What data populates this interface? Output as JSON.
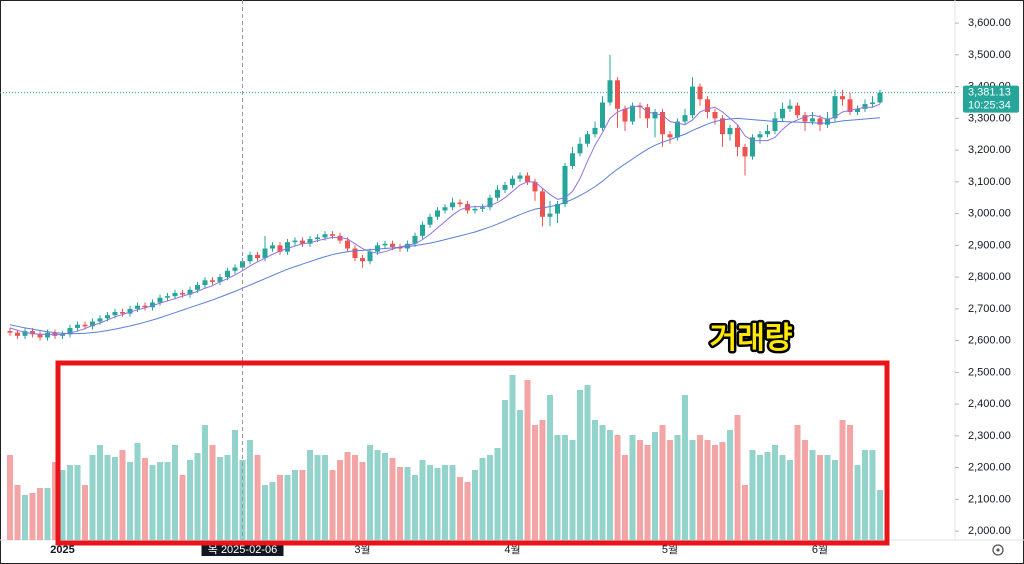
{
  "chart_data": {
    "type": "candlestick",
    "categories": [
      null,
      null,
      null,
      null,
      null,
      null,
      null,
      "2025",
      null,
      null,
      null,
      null,
      null,
      null,
      null,
      null,
      null,
      null,
      null,
      null,
      null,
      null,
      null,
      null,
      null,
      null,
      null,
      null,
      null,
      null,
      null,
      null,
      null,
      null,
      null,
      null,
      null,
      null,
      null,
      null,
      null,
      null,
      null,
      null,
      null,
      null,
      null,
      "3월",
      null,
      null,
      null,
      null,
      null,
      null,
      null,
      null,
      null,
      null,
      null,
      null,
      null,
      null,
      null,
      null,
      null,
      null,
      null,
      "4월",
      null,
      null,
      null,
      null,
      null,
      null,
      null,
      null,
      null,
      null,
      null,
      null,
      null,
      null,
      null,
      null,
      null,
      null,
      null,
      null,
      "5월",
      null,
      null,
      null,
      null,
      null,
      null,
      null,
      null,
      null,
      null,
      null,
      null,
      null,
      null,
      null,
      null,
      null,
      null,
      null,
      "6월",
      null,
      null,
      null,
      null,
      null,
      null,
      null,
      null
    ],
    "open": [
      2630,
      2625,
      2615,
      2630,
      2620,
      2610,
      2625,
      2615,
      2620,
      2640,
      2650,
      2645,
      2660,
      2670,
      2680,
      2690,
      2685,
      2700,
      2710,
      2705,
      2720,
      2735,
      2740,
      2750,
      2745,
      2760,
      2775,
      2790,
      2785,
      2800,
      2820,
      2830,
      2850,
      2870,
      2860,
      2890,
      2900,
      2880,
      2910,
      2915,
      2905,
      2920,
      2925,
      2935,
      2930,
      2915,
      2890,
      2860,
      2850,
      2880,
      2900,
      2905,
      2895,
      2890,
      2905,
      2930,
      2965,
      2990,
      3010,
      3020,
      3035,
      3030,
      3010,
      3015,
      3020,
      3050,
      3075,
      3090,
      3110,
      3120,
      3100,
      3070,
      2990,
      3000,
      3030,
      3150,
      3190,
      3220,
      3250,
      3270,
      3350,
      3420,
      3330,
      3290,
      3340,
      3335,
      3300,
      3320,
      3250,
      3240,
      3290,
      3310,
      3400,
      3360,
      3320,
      3300,
      3250,
      3270,
      3210,
      3180,
      3240,
      3250,
      3260,
      3300,
      3330,
      3340,
      3310,
      3290,
      3300,
      3280,
      3300,
      3370,
      3360,
      3320,
      3330,
      3345,
      3350
    ],
    "high": [
      2640,
      2635,
      2640,
      2640,
      2630,
      2635,
      2635,
      2630,
      2650,
      2660,
      2660,
      2670,
      2680,
      2690,
      2700,
      2700,
      2710,
      2720,
      2720,
      2730,
      2745,
      2750,
      2760,
      2760,
      2770,
      2785,
      2800,
      2800,
      2810,
      2830,
      2840,
      2860,
      2880,
      2880,
      2930,
      2910,
      2910,
      2920,
      2925,
      2925,
      2930,
      2935,
      2945,
      2945,
      2940,
      2925,
      2900,
      2870,
      2890,
      2910,
      2915,
      2915,
      2905,
      2915,
      2940,
      2975,
      3000,
      3020,
      3030,
      3050,
      3045,
      3040,
      3025,
      3030,
      3060,
      3090,
      3100,
      3120,
      3130,
      3130,
      3110,
      3080,
      3040,
      3040,
      3160,
      3210,
      3240,
      3260,
      3290,
      3370,
      3500,
      3430,
      3340,
      3350,
      3350,
      3345,
      3330,
      3330,
      3260,
      3300,
      3330,
      3430,
      3410,
      3370,
      3330,
      3310,
      3280,
      3280,
      3220,
      3250,
      3260,
      3280,
      3320,
      3350,
      3360,
      3350,
      3320,
      3320,
      3310,
      3320,
      3390,
      3390,
      3380,
      3340,
      3360,
      3370,
      3390
    ],
    "low": [
      2615,
      2605,
      2605,
      2610,
      2600,
      2600,
      2605,
      2605,
      2610,
      2630,
      2635,
      2635,
      2650,
      2660,
      2670,
      2675,
      2675,
      2690,
      2695,
      2695,
      2710,
      2725,
      2730,
      2735,
      2735,
      2750,
      2765,
      2775,
      2775,
      2790,
      2810,
      2820,
      2840,
      2850,
      2850,
      2880,
      2870,
      2870,
      2900,
      2895,
      2895,
      2910,
      2915,
      2920,
      2905,
      2880,
      2850,
      2830,
      2840,
      2870,
      2890,
      2885,
      2880,
      2880,
      2895,
      2920,
      2955,
      2980,
      3000,
      3010,
      3020,
      3000,
      3000,
      3005,
      3010,
      3040,
      3065,
      3080,
      3100,
      3090,
      3040,
      2960,
      2960,
      2970,
      3020,
      3140,
      3180,
      3210,
      3240,
      3260,
      3340,
      3270,
      3260,
      3280,
      3300,
      3270,
      3240,
      3210,
      3220,
      3230,
      3280,
      3300,
      3340,
      3300,
      3280,
      3210,
      3230,
      3180,
      3120,
      3170,
      3220,
      3240,
      3250,
      3290,
      3320,
      3300,
      3260,
      3280,
      3260,
      3270,
      3290,
      3340,
      3310,
      3310,
      3320,
      3335,
      3345
    ],
    "close": [
      2625,
      2615,
      2630,
      2620,
      2610,
      2625,
      2615,
      2620,
      2640,
      2650,
      2645,
      2660,
      2670,
      2680,
      2690,
      2685,
      2700,
      2710,
      2705,
      2720,
      2735,
      2740,
      2750,
      2745,
      2760,
      2775,
      2790,
      2785,
      2800,
      2820,
      2830,
      2850,
      2870,
      2860,
      2890,
      2900,
      2880,
      2910,
      2915,
      2905,
      2920,
      2925,
      2935,
      2930,
      2915,
      2890,
      2860,
      2850,
      2880,
      2900,
      2905,
      2895,
      2890,
      2905,
      2930,
      2965,
      2990,
      3010,
      3020,
      3035,
      3030,
      3010,
      3015,
      3020,
      3050,
      3075,
      3090,
      3110,
      3120,
      3100,
      3070,
      2990,
      3000,
      3030,
      3150,
      3190,
      3220,
      3250,
      3270,
      3350,
      3420,
      3330,
      3290,
      3340,
      3335,
      3300,
      3320,
      3250,
      3240,
      3290,
      3310,
      3400,
      3360,
      3320,
      3300,
      3250,
      3270,
      3210,
      3180,
      3240,
      3250,
      3260,
      3300,
      3330,
      3340,
      3310,
      3290,
      3300,
      3280,
      3300,
      3370,
      3360,
      3320,
      3330,
      3345,
      3350,
      3381.13
    ],
    "volume": [
      85,
      55,
      45,
      47,
      52,
      52,
      78,
      70,
      75,
      75,
      55,
      85,
      95,
      85,
      83,
      90,
      78,
      97,
      82,
      75,
      78,
      78,
      95,
      65,
      80,
      87,
      115,
      95,
      83,
      85,
      110,
      80,
      100,
      85,
      55,
      58,
      65,
      65,
      70,
      70,
      90,
      85,
      85,
      70,
      80,
      88,
      85,
      78,
      95,
      90,
      87,
      82,
      73,
      73,
      65,
      80,
      75,
      72,
      75,
      75,
      63,
      58,
      70,
      82,
      85,
      92,
      140,
      165,
      130,
      160,
      115,
      120,
      145,
      105,
      105,
      100,
      150,
      155,
      120,
      115,
      110,
      105,
      85,
      105,
      100,
      95,
      108,
      115,
      100,
      105,
      145,
      100,
      105,
      100,
      95,
      98,
      110,
      125,
      55,
      90,
      85,
      88,
      95,
      85,
      80,
      115,
      100,
      90,
      85,
      85,
      80,
      120,
      115,
      75,
      90,
      90,
      50
    ],
    "volume_lim": [
      0,
      170
    ],
    "moving_averages": [
      {
        "color": "#8e72e6",
        "values": [
          2640,
          2632,
          2626,
          2622,
          2620,
          2620,
          2618,
          2620,
          2624,
          2630,
          2638,
          2648,
          2655,
          2665,
          2675,
          2682,
          2690,
          2697,
          2703,
          2710,
          2718,
          2725,
          2732,
          2740,
          2747,
          2755,
          2765,
          2773,
          2785,
          2795,
          2807,
          2820,
          2835,
          2848,
          2860,
          2872,
          2882,
          2890,
          2898,
          2905,
          2908,
          2915,
          2920,
          2925,
          2925,
          2920,
          2905,
          2890,
          2880,
          2875,
          2880,
          2888,
          2895,
          2900,
          2905,
          2918,
          2935,
          2955,
          2975,
          2995,
          3012,
          3020,
          3022,
          3022,
          3025,
          3035,
          3050,
          3070,
          3090,
          3100,
          3100,
          3080,
          3060,
          3045,
          3050,
          3070,
          3110,
          3165,
          3215,
          3255,
          3300,
          3320,
          3330,
          3335,
          3340,
          3320,
          3315,
          3310,
          3290,
          3285,
          3280,
          3295,
          3320,
          3330,
          3335,
          3320,
          3300,
          3280,
          3245,
          3230,
          3230,
          3230,
          3240,
          3265,
          3285,
          3295,
          3305,
          3310,
          3305,
          3295,
          3305,
          3320,
          3325,
          3330,
          3335,
          3335,
          3345
        ]
      },
      {
        "color": "#5a7fd8",
        "values": [
          2650,
          2645,
          2640,
          2636,
          2632,
          2628,
          2625,
          2623,
          2622,
          2622,
          2623,
          2625,
          2628,
          2632,
          2636,
          2641,
          2646,
          2652,
          2658,
          2665,
          2672,
          2680,
          2688,
          2696,
          2704,
          2712,
          2720,
          2728,
          2737,
          2746,
          2755,
          2765,
          2775,
          2785,
          2795,
          2805,
          2815,
          2825,
          2833,
          2841,
          2849,
          2857,
          2864,
          2871,
          2876,
          2880,
          2883,
          2884,
          2886,
          2888,
          2890,
          2892,
          2894,
          2896,
          2899,
          2903,
          2907,
          2912,
          2918,
          2924,
          2930,
          2936,
          2942,
          2950,
          2958,
          2967,
          2977,
          2987,
          2997,
          3006,
          3014,
          3018,
          3022,
          3027,
          3035,
          3045,
          3057,
          3070,
          3085,
          3102,
          3122,
          3140,
          3156,
          3172,
          3188,
          3203,
          3215,
          3225,
          3233,
          3242,
          3250,
          3262,
          3272,
          3282,
          3290,
          3295,
          3298,
          3300,
          3298,
          3296,
          3294,
          3292,
          3290,
          3290,
          3289,
          3288,
          3287,
          3286,
          3285,
          3285,
          3288,
          3292,
          3294,
          3296,
          3298,
          3300,
          3302
        ]
      }
    ],
    "up_color": "#26a69a",
    "down_color": "#ef5350",
    "volume_up_color": "#93d3cb",
    "volume_down_color": "#f2a5a4",
    "ylim": [
      1972,
      3657
    ],
    "yticks": [
      {
        "value": 3600,
        "label": "3,600.00"
      },
      {
        "value": 3500,
        "label": "3,500.00"
      },
      {
        "value": 3400,
        "label": "3,400.00"
      },
      {
        "value": 3300,
        "label": "3,300.00"
      },
      {
        "value": 3200,
        "label": "3,200.00"
      },
      {
        "value": 3100,
        "label": "3,100.00"
      },
      {
        "value": 3000,
        "label": "3,000.00"
      },
      {
        "value": 2900,
        "label": "2,900.00"
      },
      {
        "value": 2800,
        "label": "2,800.00"
      },
      {
        "value": 2700,
        "label": "2,700.00"
      },
      {
        "value": 2600,
        "label": "2,600.00"
      },
      {
        "value": 2500,
        "label": "2,500.00"
      },
      {
        "value": 2400,
        "label": "2,400.00"
      },
      {
        "value": 2300,
        "label": "2,300.00"
      },
      {
        "value": 2200,
        "label": "2,200.00"
      },
      {
        "value": 2100,
        "label": "2,100.00"
      },
      {
        "value": 2000,
        "label": "2,000.00"
      }
    ],
    "last_price": {
      "value": 3381.13,
      "label": "3,381.13"
    },
    "countdown": "10:25:34",
    "crosshair_index": 31,
    "crosshair_label": "목 2025-02-06",
    "annotation": "거래량"
  }
}
